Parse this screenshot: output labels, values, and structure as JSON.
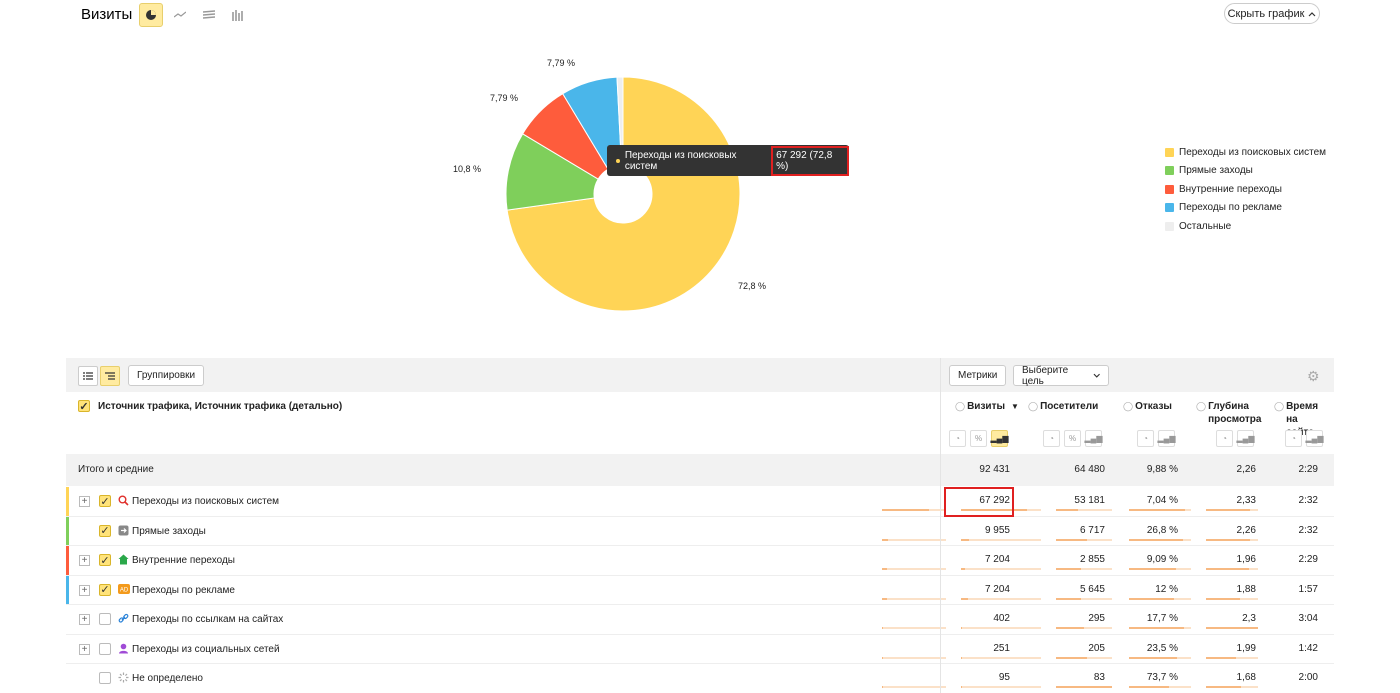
{
  "header": {
    "title": "Визиты",
    "hide_chart": "Скрыть график"
  },
  "chart_data": {
    "type": "pie",
    "categories": [
      "Переходы из поисковых систем",
      "Прямые заходы",
      "Внутренние переходы",
      "Переходы по рекламе",
      "Остальные"
    ],
    "values": [
      72.8,
      10.8,
      7.79,
      7.79,
      0.82
    ],
    "labels": [
      "72,8 %",
      "10,8 %",
      "7,79 %",
      "7,79 %",
      ""
    ],
    "colors": [
      "#ffd456",
      "#7fcf5b",
      "#fe5c3c",
      "#4ab6ea",
      "#eeeeee"
    ],
    "legend_position": "right"
  },
  "tooltip": {
    "label": "Переходы из поисковых систем",
    "value": "67 292 (72,8 %)"
  },
  "legend": [
    {
      "label": "Переходы из поисковых систем",
      "color": "#ffd456"
    },
    {
      "label": "Прямые заходы",
      "color": "#7fcf5b"
    },
    {
      "label": "Внутренние переходы",
      "color": "#fe5c3c"
    },
    {
      "label": "Переходы по рекламе",
      "color": "#4ab6ea"
    },
    {
      "label": "Остальные",
      "color": "#eeeeee"
    }
  ],
  "toolbar": {
    "groupings": "Группировки",
    "metrics": "Метрики",
    "select_goal": "Выберите цель"
  },
  "table": {
    "dimension_header": "Источник трафика, Источник трафика (детально)",
    "columns": [
      "Визиты",
      "Посетители",
      "Отказы",
      "Глубина просмотра",
      "Время на сайте"
    ],
    "totals": {
      "label": "Итого и средние",
      "values": [
        "92 431",
        "64 480",
        "9,88 %",
        "2,26",
        "2:29"
      ]
    },
    "rows": [
      {
        "label": "Переходы из поисковых систем",
        "values": [
          "67 292",
          "53 181",
          "7,04 %",
          "2,33",
          "2:32"
        ],
        "checked": true,
        "color": "#ffd456",
        "icon": "search-icon",
        "fill": [
          0.73,
          0.82,
          0.4,
          0.9,
          0.85
        ]
      },
      {
        "label": "Прямые заходы",
        "values": [
          "9 955",
          "6 717",
          "26,8 %",
          "2,26",
          "2:32"
        ],
        "checked": true,
        "color": "#7fcf5b",
        "icon": "direct-icon",
        "fill": [
          0.1,
          0.1,
          0.55,
          0.87,
          0.85
        ]
      },
      {
        "label": "Внутренние переходы",
        "values": [
          "7 204",
          "2 855",
          "9,09 %",
          "1,96",
          "2:29"
        ],
        "checked": true,
        "color": "#fe5c3c",
        "icon": "home-icon",
        "fill": [
          0.08,
          0.05,
          0.45,
          0.75,
          0.83
        ]
      },
      {
        "label": "Переходы по рекламе",
        "values": [
          "7 204",
          "5 645",
          "12 %",
          "1,88",
          "1:57"
        ],
        "checked": true,
        "color": "#4ab6ea",
        "icon": "ad-icon",
        "fill": [
          0.08,
          0.09,
          0.45,
          0.72,
          0.65
        ]
      },
      {
        "label": "Переходы по ссылкам на сайтах",
        "values": [
          "402",
          "295",
          "17,7 %",
          "2,3",
          "3:04"
        ],
        "checked": false,
        "color": "",
        "icon": "link-icon",
        "fill": [
          0.01,
          0.01,
          0.5,
          0.88,
          1.0
        ]
      },
      {
        "label": "Переходы из социальных сетей",
        "values": [
          "251",
          "205",
          "23,5 %",
          "1,99",
          "1:42"
        ],
        "checked": false,
        "color": "",
        "icon": "social-icon",
        "fill": [
          0.01,
          0.01,
          0.55,
          0.77,
          0.57
        ]
      },
      {
        "label": "Не определено",
        "values": [
          "95",
          "83",
          "73,7 %",
          "1,68",
          "2:00"
        ],
        "checked": false,
        "color": "",
        "icon": "undefined-icon",
        "fill": [
          0.005,
          0.005,
          1.0,
          0.65,
          0.67
        ]
      }
    ]
  }
}
